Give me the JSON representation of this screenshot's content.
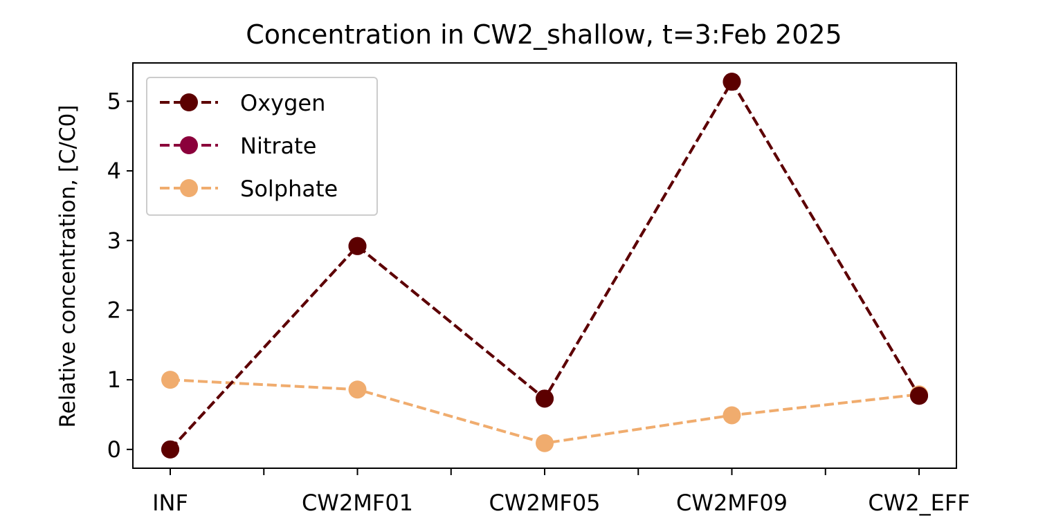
{
  "chart_data": {
    "type": "line",
    "title": "Concentration in CW2_shallow, t=3:Feb 2025",
    "xlabel": "",
    "ylabel": "Relative concentration, [C/C0]",
    "categories": [
      "INF",
      "CW2MF01",
      "CW2MF05",
      "CW2MF09",
      "CW2_EFF"
    ],
    "ylim": [
      -0.27,
      5.55
    ],
    "yticks": [
      0,
      1,
      2,
      3,
      4,
      5
    ],
    "grid": false,
    "legend_position": "top-left",
    "series": [
      {
        "name": "Oxygen",
        "color": "#5c0000",
        "values": [
          0.0,
          2.92,
          0.73,
          5.28,
          0.77
        ]
      },
      {
        "name": "Nitrate",
        "color": "#8b003b",
        "values": [
          0.0,
          2.92,
          0.73,
          5.28,
          0.77
        ]
      },
      {
        "name": "Solphate",
        "color": "#f0ac6e",
        "values": [
          1.0,
          0.86,
          0.09,
          0.49,
          0.79
        ]
      }
    ]
  }
}
